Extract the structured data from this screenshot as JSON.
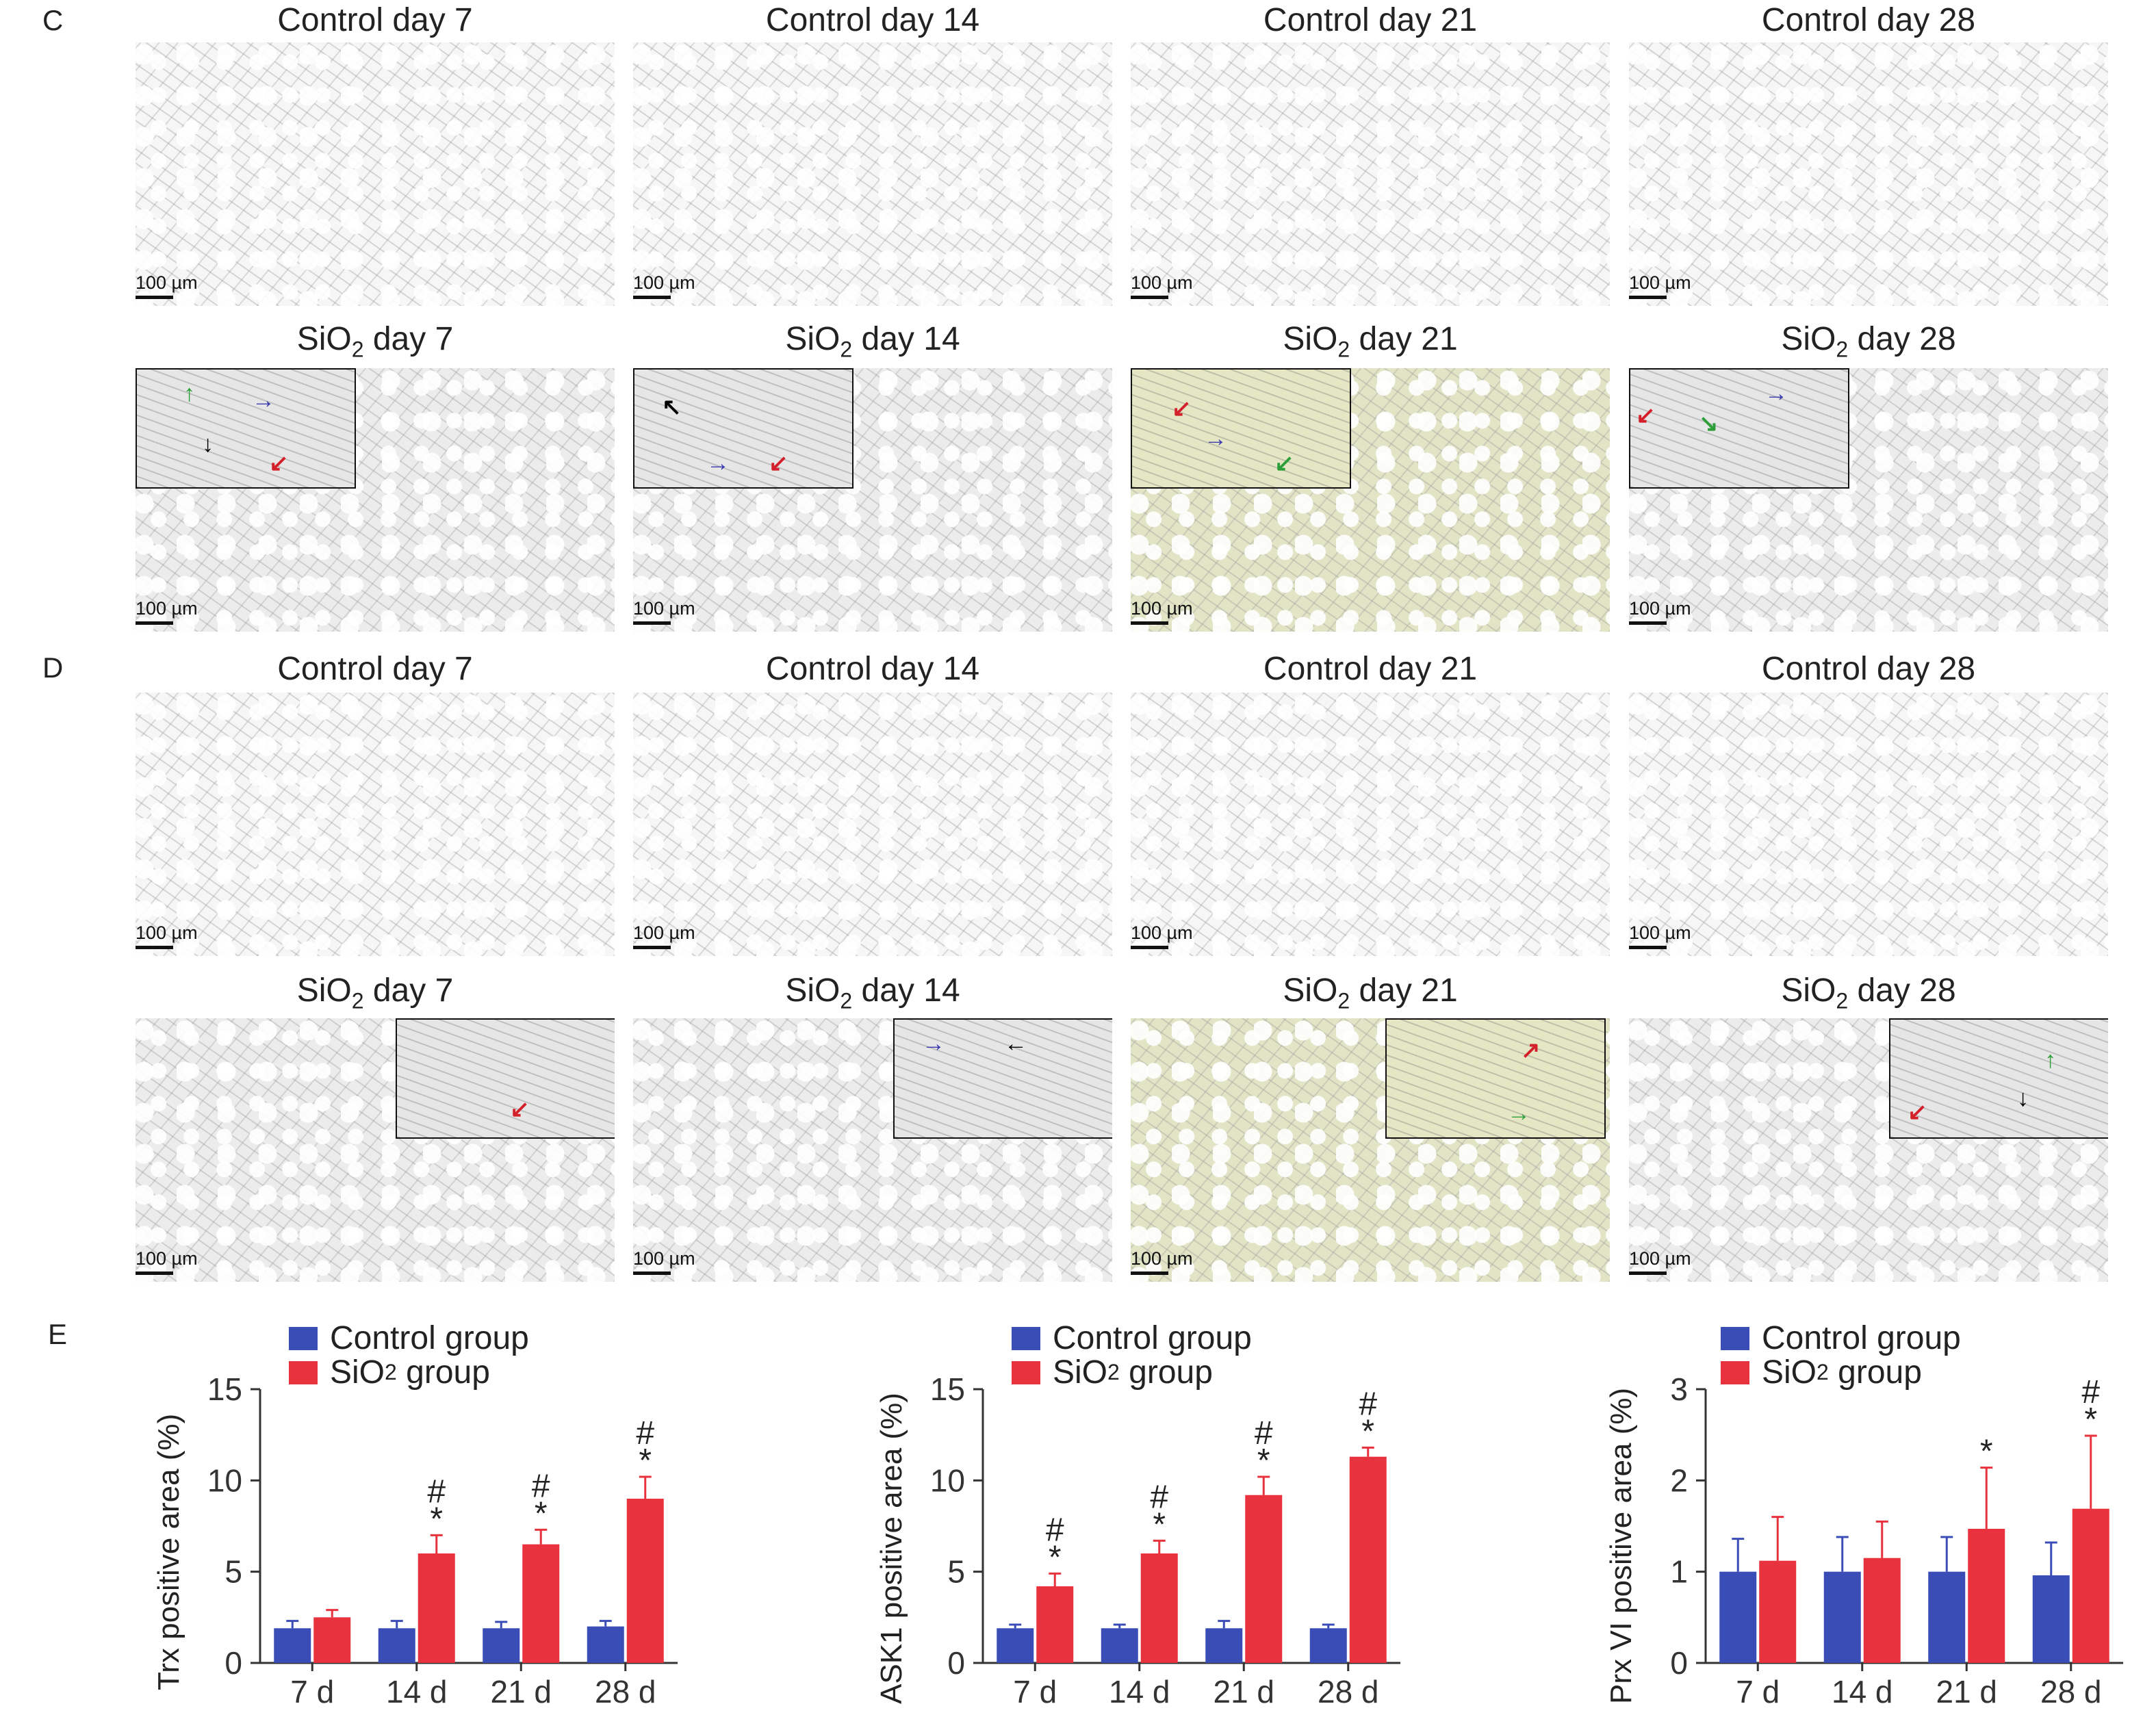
{
  "panel_c": {
    "letter": "C",
    "row1": [
      "Control day 7",
      "Control day 14",
      "Control day 21",
      "Control day 28"
    ],
    "row2_prefix": "SiO",
    "row2_sub": "2",
    "row2_days": [
      "day 7",
      "day 14",
      "day 21",
      "day 28"
    ]
  },
  "panel_d": {
    "letter": "D",
    "row1": [
      "Control day 7",
      "Control day 14",
      "Control day 21",
      "Control day 28"
    ],
    "row2_prefix": "SiO",
    "row2_sub": "2",
    "row2_days": [
      "day 7",
      "day 14",
      "day 21",
      "day 28"
    ]
  },
  "scale_label": "100 µm",
  "panel_e": {
    "letter": "E",
    "legend": {
      "control": "Control group",
      "sio2_prefix": "SiO",
      "sio2_sub": "2",
      "sio2_suffix": " group"
    }
  },
  "colors": {
    "control": "#3a4cb5",
    "sio2": "#e8333e"
  },
  "chart_data": [
    {
      "type": "bar",
      "ylabel": "Trx positive area (%)",
      "ylim": [
        0,
        15
      ],
      "yticks": [
        0,
        5,
        10,
        15
      ],
      "categories": [
        "7 d",
        "14 d",
        "21 d",
        "28 d"
      ],
      "series": [
        {
          "name": "Control group",
          "values": [
            1.9,
            1.9,
            1.9,
            2.0
          ],
          "errors": [
            0.4,
            0.4,
            0.35,
            0.3
          ]
        },
        {
          "name": "SiO2 group",
          "values": [
            2.5,
            6.0,
            6.5,
            9.0
          ],
          "errors": [
            0.4,
            1.0,
            0.8,
            1.2
          ]
        }
      ],
      "annotations": [
        "",
        "#\n*",
        "#\n*",
        "#\n*"
      ]
    },
    {
      "type": "bar",
      "ylabel": "ASK1 positive area (%)",
      "ylim": [
        0,
        15
      ],
      "yticks": [
        0,
        5,
        10,
        15
      ],
      "categories": [
        "7 d",
        "14 d",
        "21 d",
        "28 d"
      ],
      "series": [
        {
          "name": "Control group",
          "values": [
            1.9,
            1.9,
            1.9,
            1.9
          ],
          "errors": [
            0.2,
            0.2,
            0.4,
            0.2
          ]
        },
        {
          "name": "SiO2 group",
          "values": [
            4.2,
            6.0,
            9.2,
            11.3
          ],
          "errors": [
            0.7,
            0.7,
            1.0,
            0.5
          ]
        }
      ],
      "annotations": [
        "#\n*",
        "#\n*",
        "#\n*",
        "#\n*"
      ]
    },
    {
      "type": "bar",
      "ylabel": "Prx VI positive area (%)",
      "ylim": [
        0,
        3
      ],
      "yticks": [
        0,
        1,
        2,
        3
      ],
      "categories": [
        "7 d",
        "14 d",
        "21 d",
        "28 d"
      ],
      "series": [
        {
          "name": "Control group",
          "values": [
            1.0,
            1.0,
            1.0,
            0.96
          ],
          "errors": [
            0.36,
            0.38,
            0.38,
            0.36
          ]
        },
        {
          "name": "SiO2 group",
          "values": [
            1.12,
            1.15,
            1.47,
            1.69
          ],
          "errors": [
            0.48,
            0.4,
            0.67,
            0.8
          ]
        }
      ],
      "annotations": [
        "",
        "",
        "*",
        "#\n*"
      ]
    }
  ]
}
